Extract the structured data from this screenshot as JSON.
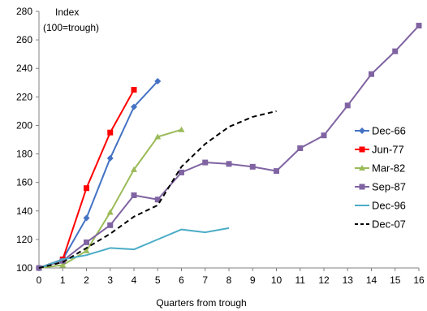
{
  "chart_data": {
    "type": "line",
    "xlabel": "Quarters from trough",
    "ylabel_line1": "Index",
    "ylabel_line2": "(100=trough)",
    "xlim": [
      0,
      16
    ],
    "ylim": [
      100,
      280
    ],
    "xticks": [
      0,
      1,
      2,
      3,
      4,
      5,
      6,
      7,
      8,
      9,
      10,
      11,
      12,
      13,
      14,
      15,
      16
    ],
    "yticks": [
      100,
      120,
      140,
      160,
      180,
      200,
      220,
      240,
      260,
      280
    ],
    "grid": false,
    "legend_position": "right",
    "series": [
      {
        "name": "Dec-66",
        "color": "#4472C4",
        "marker": "diamond",
        "dash": "",
        "x": [
          0,
          1,
          2,
          3,
          4,
          5
        ],
        "y": [
          100,
          106,
          135,
          177,
          213,
          231
        ]
      },
      {
        "name": "Jun-77",
        "color": "#FF0000",
        "marker": "square",
        "dash": "",
        "x": [
          0,
          1,
          2,
          3,
          4
        ],
        "y": [
          100,
          106,
          156,
          195,
          225
        ]
      },
      {
        "name": "Mar-82",
        "color": "#9BBB59",
        "marker": "triangle",
        "dash": "",
        "x": [
          0,
          1,
          2,
          3,
          4,
          5,
          6
        ],
        "y": [
          100,
          102,
          112,
          139,
          169,
          192,
          197
        ]
      },
      {
        "name": "Sep-87",
        "color": "#8064A2",
        "marker": "square",
        "dash": "",
        "x": [
          0,
          1,
          2,
          3,
          4,
          5,
          6,
          7,
          8,
          9,
          10,
          11,
          12,
          13,
          14,
          15,
          16
        ],
        "y": [
          100,
          105,
          118,
          130,
          151,
          148,
          167,
          174,
          173,
          171,
          168,
          184,
          193,
          214,
          236,
          252,
          270
        ]
      },
      {
        "name": "Dec-96",
        "color": "#4BACC6",
        "marker": "none",
        "dash": "",
        "x": [
          0,
          1,
          2,
          3,
          4,
          5,
          6,
          7,
          8
        ],
        "y": [
          100,
          106,
          109,
          114,
          113,
          120,
          127,
          125,
          128
        ]
      },
      {
        "name": "Dec-07",
        "color": "#000000",
        "marker": "none",
        "dash": "6,4",
        "x": [
          0,
          1,
          2,
          3,
          4,
          5,
          6,
          7,
          8,
          9,
          10
        ],
        "y": [
          100,
          104,
          114,
          124,
          136,
          144,
          171,
          187,
          199,
          206,
          210
        ]
      }
    ]
  }
}
